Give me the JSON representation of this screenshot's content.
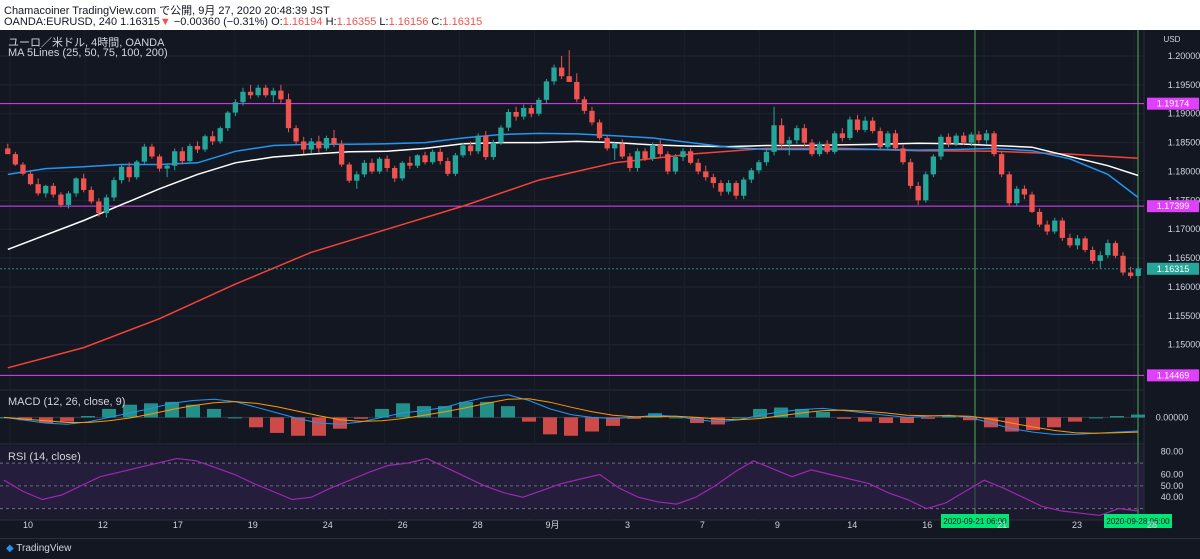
{
  "header": {
    "line1": "Chamacoiner TradingView.com で公開, 9月 27, 2020 20:48:39 JST",
    "symbol": "OANDA:EURUSD, 240",
    "last": "1.16315",
    "change": "−0.00360 (−0.31%)",
    "o_label": "O:",
    "o": "1.16194",
    "h_label": "H:",
    "h": "1.16355",
    "l_label": "L:",
    "l": "1.16156",
    "c_label": "C:",
    "c": "1.16315"
  },
  "legend": {
    "title": "ユーロ／米ドル, 4時間, OANDA",
    "ma": "MA 5Lines (25, 50, 75, 100, 200)",
    "macd": "MACD (12, 26, close, 9)",
    "rsi": "RSI (14, close)"
  },
  "footer": {
    "brand": "TradingView"
  },
  "colors": {
    "up": "#26a69a",
    "down": "#ef5350",
    "ma_blue": "#2196f3",
    "ma_red": "#f44336",
    "ma_white": "#ffffff",
    "level": "#e040fb",
    "vline": "#4caf50",
    "rsi": "#9c27b0"
  },
  "chart_data": {
    "type": "candlestick",
    "currency": "USD",
    "price_axis_ticks": [
      "1.20000",
      "1.19500",
      "1.19000",
      "1.18500",
      "1.18000",
      "1.17500",
      "1.17000",
      "1.16500",
      "1.16000",
      "1.15500",
      "1.15000"
    ],
    "price_range": [
      1.1425,
      1.2045
    ],
    "date_ticks": [
      "10",
      "12",
      "17",
      "19",
      "24",
      "26",
      "28",
      "9月",
      "3",
      "7",
      "9",
      "14",
      "16",
      "21",
      "23",
      "28"
    ],
    "levels": [
      "1.19174",
      "1.17399",
      "1.14469"
    ],
    "last_price": "1.16315",
    "vertical_markers": [
      "2020-09-21 06:00",
      "2020-09-28 06:00"
    ],
    "ma_blue": [
      [
        0,
        1.1795
      ],
      [
        5,
        1.1805
      ],
      [
        10,
        1.1808
      ],
      [
        15,
        1.1812
      ],
      [
        20,
        1.1812
      ],
      [
        25,
        1.1815
      ],
      [
        30,
        1.1835
      ],
      [
        35,
        1.1845
      ],
      [
        40,
        1.1847
      ],
      [
        45,
        1.1847
      ],
      [
        50,
        1.1848
      ],
      [
        55,
        1.185
      ],
      [
        60,
        1.1858
      ],
      [
        65,
        1.1864
      ],
      [
        70,
        1.1866
      ],
      [
        75,
        1.1865
      ],
      [
        80,
        1.1862
      ],
      [
        85,
        1.1858
      ],
      [
        90,
        1.185
      ],
      [
        95,
        1.1842
      ],
      [
        100,
        1.1838
      ],
      [
        105,
        1.1838
      ],
      [
        110,
        1.1838
      ],
      [
        115,
        1.1838
      ],
      [
        120,
        1.1837
      ],
      [
        125,
        1.1838
      ],
      [
        130,
        1.184
      ],
      [
        135,
        1.1836
      ],
      [
        140,
        1.1822
      ],
      [
        145,
        1.1795
      ],
      [
        149,
        1.1755
      ]
    ],
    "ma_white": [
      [
        0,
        1.1665
      ],
      [
        10,
        1.1715
      ],
      [
        20,
        1.177
      ],
      [
        25,
        1.1795
      ],
      [
        30,
        1.1815
      ],
      [
        35,
        1.1825
      ],
      [
        40,
        1.183
      ],
      [
        45,
        1.1834
      ],
      [
        50,
        1.1835
      ],
      [
        55,
        1.184
      ],
      [
        60,
        1.1848
      ],
      [
        65,
        1.185
      ],
      [
        70,
        1.185
      ],
      [
        75,
        1.1852
      ],
      [
        80,
        1.185
      ],
      [
        85,
        1.1846
      ],
      [
        90,
        1.1844
      ],
      [
        95,
        1.1843
      ],
      [
        100,
        1.1845
      ],
      [
        105,
        1.1845
      ],
      [
        110,
        1.1846
      ],
      [
        115,
        1.1847
      ],
      [
        120,
        1.1849
      ],
      [
        125,
        1.1848
      ],
      [
        130,
        1.1845
      ],
      [
        135,
        1.1842
      ],
      [
        140,
        1.1826
      ],
      [
        145,
        1.181
      ],
      [
        149,
        1.1793
      ]
    ],
    "ma_red": [
      [
        0,
        1.146
      ],
      [
        10,
        1.1495
      ],
      [
        20,
        1.1545
      ],
      [
        30,
        1.1605
      ],
      [
        40,
        1.166
      ],
      [
        50,
        1.17
      ],
      [
        60,
        1.174
      ],
      [
        70,
        1.1785
      ],
      [
        80,
        1.1815
      ],
      [
        90,
        1.183
      ],
      [
        100,
        1.184
      ],
      [
        110,
        1.184
      ],
      [
        120,
        1.1836
      ],
      [
        130,
        1.1835
      ],
      [
        140,
        1.183
      ],
      [
        149,
        1.1823
      ]
    ],
    "candles": [
      [
        1.184,
        1.1848,
        1.1832,
        1.183
      ],
      [
        1.183,
        1.1834,
        1.181,
        1.1812
      ],
      [
        1.1812,
        1.1816,
        1.1793,
        1.1796
      ],
      [
        1.1796,
        1.1802,
        1.1776,
        1.1778
      ],
      [
        1.1778,
        1.1788,
        1.1758,
        1.1762
      ],
      [
        1.1762,
        1.1777,
        1.1755,
        1.1775
      ],
      [
        1.1775,
        1.178,
        1.1755,
        1.176
      ],
      [
        1.176,
        1.1764,
        1.1738,
        1.1742
      ],
      [
        1.1742,
        1.1766,
        1.1736,
        1.1762
      ],
      [
        1.1762,
        1.179,
        1.1756,
        1.1788
      ],
      [
        1.1788,
        1.1796,
        1.1764,
        1.1768
      ],
      [
        1.1768,
        1.1774,
        1.1744,
        1.1748
      ],
      [
        1.1748,
        1.1754,
        1.1722,
        1.1728
      ],
      [
        1.1728,
        1.176,
        1.172,
        1.1755
      ],
      [
        1.1755,
        1.179,
        1.1749,
        1.1785
      ],
      [
        1.1785,
        1.1813,
        1.1779,
        1.1808
      ],
      [
        1.1808,
        1.1816,
        1.1782,
        1.179
      ],
      [
        1.179,
        1.182,
        1.1786,
        1.1817
      ],
      [
        1.1817,
        1.1848,
        1.1813,
        1.1843
      ],
      [
        1.1843,
        1.1848,
        1.1822,
        1.1826
      ],
      [
        1.1826,
        1.183,
        1.18,
        1.1805
      ],
      [
        1.1805,
        1.1813,
        1.179,
        1.181
      ],
      [
        1.181,
        1.184,
        1.1802,
        1.1835
      ],
      [
        1.1835,
        1.1842,
        1.1812,
        1.1818
      ],
      [
        1.1818,
        1.1848,
        1.1814,
        1.1844
      ],
      [
        1.1844,
        1.1852,
        1.1832,
        1.1838
      ],
      [
        1.1838,
        1.1864,
        1.1834,
        1.1861
      ],
      [
        1.1861,
        1.187,
        1.1846,
        1.1852
      ],
      [
        1.1852,
        1.1878,
        1.1848,
        1.1875
      ],
      [
        1.1875,
        1.1905,
        1.187,
        1.1902
      ],
      [
        1.1902,
        1.1925,
        1.1896,
        1.192
      ],
      [
        1.192,
        1.1945,
        1.1914,
        1.1938
      ],
      [
        1.1938,
        1.195,
        1.1926,
        1.1932
      ],
      [
        1.1932,
        1.195,
        1.1928,
        1.1945
      ],
      [
        1.1945,
        1.195,
        1.1928,
        1.1932
      ],
      [
        1.1932,
        1.1945,
        1.192,
        1.194
      ],
      [
        1.194,
        1.195,
        1.1918,
        1.1925
      ],
      [
        1.1925,
        1.1935,
        1.1868,
        1.1875
      ],
      [
        1.1875,
        1.188,
        1.1846,
        1.1852
      ],
      [
        1.1852,
        1.186,
        1.183,
        1.1838
      ],
      [
        1.1838,
        1.1858,
        1.1832,
        1.1852
      ],
      [
        1.1852,
        1.1862,
        1.1832,
        1.184
      ],
      [
        1.184,
        1.1862,
        1.1836,
        1.1858
      ],
      [
        1.1858,
        1.1872,
        1.1842,
        1.1848
      ],
      [
        1.1848,
        1.1854,
        1.1808,
        1.1812
      ],
      [
        1.1812,
        1.1816,
        1.178,
        1.1784
      ],
      [
        1.1784,
        1.18,
        1.177,
        1.1795
      ],
      [
        1.1795,
        1.182,
        1.179,
        1.1815
      ],
      [
        1.1815,
        1.1822,
        1.1796,
        1.18
      ],
      [
        1.18,
        1.1825,
        1.1796,
        1.1822
      ],
      [
        1.1822,
        1.1828,
        1.18,
        1.1806
      ],
      [
        1.1806,
        1.181,
        1.1782,
        1.1788
      ],
      [
        1.1788,
        1.1818,
        1.1784,
        1.1815
      ],
      [
        1.1815,
        1.1826,
        1.1804,
        1.181
      ],
      [
        1.181,
        1.183,
        1.1806,
        1.1828
      ],
      [
        1.1828,
        1.1834,
        1.1812,
        1.1816
      ],
      [
        1.1816,
        1.1838,
        1.1812,
        1.1834
      ],
      [
        1.1834,
        1.184,
        1.1812,
        1.1818
      ],
      [
        1.1818,
        1.1824,
        1.1792,
        1.1796
      ],
      [
        1.1796,
        1.1832,
        1.1792,
        1.1828
      ],
      [
        1.1828,
        1.185,
        1.1824,
        1.1845
      ],
      [
        1.1845,
        1.1852,
        1.1828,
        1.1835
      ],
      [
        1.1835,
        1.1866,
        1.183,
        1.1862
      ],
      [
        1.1862,
        1.187,
        1.182,
        1.1825
      ],
      [
        1.1825,
        1.1855,
        1.182,
        1.185
      ],
      [
        1.185,
        1.188,
        1.1846,
        1.1876
      ],
      [
        1.1876,
        1.1908,
        1.187,
        1.1903
      ],
      [
        1.1903,
        1.1912,
        1.1888,
        1.1895
      ],
      [
        1.1895,
        1.1916,
        1.189,
        1.191
      ],
      [
        1.191,
        1.1915,
        1.1894,
        1.19
      ],
      [
        1.19,
        1.1928,
        1.1896,
        1.1924
      ],
      [
        1.1924,
        1.196,
        1.1918,
        1.1956
      ],
      [
        1.1956,
        1.1985,
        1.195,
        1.198
      ],
      [
        1.198,
        1.2,
        1.196,
        1.1965
      ],
      [
        1.1965,
        1.201,
        1.1955,
        1.1955
      ],
      [
        1.1955,
        1.197,
        1.192,
        1.1925
      ],
      [
        1.1925,
        1.193,
        1.19,
        1.1905
      ],
      [
        1.1905,
        1.1912,
        1.188,
        1.1885
      ],
      [
        1.1885,
        1.189,
        1.1855,
        1.1858
      ],
      [
        1.1858,
        1.1862,
        1.1836,
        1.184
      ],
      [
        1.184,
        1.185,
        1.182,
        1.1848
      ],
      [
        1.1848,
        1.1856,
        1.1822,
        1.1826
      ],
      [
        1.1826,
        1.1832,
        1.18,
        1.1806
      ],
      [
        1.1806,
        1.184,
        1.18,
        1.1835
      ],
      [
        1.1835,
        1.184,
        1.1818,
        1.1822
      ],
      [
        1.1822,
        1.185,
        1.1818,
        1.1846
      ],
      [
        1.1846,
        1.1855,
        1.1825,
        1.183
      ],
      [
        1.183,
        1.1835,
        1.1795,
        1.18
      ],
      [
        1.18,
        1.183,
        1.1795,
        1.1825
      ],
      [
        1.1825,
        1.184,
        1.1818,
        1.1835
      ],
      [
        1.1835,
        1.184,
        1.1812,
        1.1815
      ],
      [
        1.1815,
        1.1822,
        1.1795,
        1.18
      ],
      [
        1.18,
        1.181,
        1.1784,
        1.179
      ],
      [
        1.179,
        1.1796,
        1.1772,
        1.178
      ],
      [
        1.178,
        1.1785,
        1.1758,
        1.1765
      ],
      [
        1.1765,
        1.1785,
        1.176,
        1.178
      ],
      [
        1.178,
        1.1784,
        1.1752,
        1.1758
      ],
      [
        1.1758,
        1.179,
        1.1752,
        1.1786
      ],
      [
        1.1786,
        1.1806,
        1.178,
        1.1802
      ],
      [
        1.1802,
        1.182,
        1.1796,
        1.1816
      ],
      [
        1.1816,
        1.1838,
        1.181,
        1.1834
      ],
      [
        1.1834,
        1.1912,
        1.1828,
        1.188
      ],
      [
        1.188,
        1.1892,
        1.184,
        1.1848
      ],
      [
        1.1848,
        1.186,
        1.1828,
        1.1854
      ],
      [
        1.1854,
        1.188,
        1.1848,
        1.1875
      ],
      [
        1.1875,
        1.1882,
        1.1844,
        1.185
      ],
      [
        1.185,
        1.1856,
        1.1826,
        1.183
      ],
      [
        1.183,
        1.1852,
        1.1826,
        1.1848
      ],
      [
        1.1848,
        1.1854,
        1.183,
        1.1834
      ],
      [
        1.1834,
        1.187,
        1.183,
        1.1866
      ],
      [
        1.1866,
        1.1875,
        1.1852,
        1.1858
      ],
      [
        1.1858,
        1.1895,
        1.1854,
        1.189
      ],
      [
        1.189,
        1.1898,
        1.1868,
        1.1872
      ],
      [
        1.1872,
        1.1895,
        1.1868,
        1.1888
      ],
      [
        1.1888,
        1.1894,
        1.1866,
        1.187
      ],
      [
        1.187,
        1.1876,
        1.1838,
        1.1842
      ],
      [
        1.1842,
        1.187,
        1.1838,
        1.1866
      ],
      [
        1.1866,
        1.1872,
        1.1836,
        1.184
      ],
      [
        1.184,
        1.1846,
        1.1812,
        1.1816
      ],
      [
        1.1816,
        1.1822,
        1.177,
        1.1775
      ],
      [
        1.1775,
        1.1782,
        1.1742,
        1.175
      ],
      [
        1.175,
        1.18,
        1.1746,
        1.1795
      ],
      [
        1.1795,
        1.183,
        1.179,
        1.1826
      ],
      [
        1.1826,
        1.1864,
        1.182,
        1.186
      ],
      [
        1.186,
        1.1866,
        1.1842,
        1.1848
      ],
      [
        1.1848,
        1.1866,
        1.1844,
        1.1862
      ],
      [
        1.1862,
        1.1868,
        1.1846,
        1.185
      ],
      [
        1.185,
        1.1868,
        1.1844,
        1.1864
      ],
      [
        1.1864,
        1.187,
        1.1848,
        1.1854
      ],
      [
        1.1854,
        1.1872,
        1.1848,
        1.1866
      ],
      [
        1.1866,
        1.187,
        1.1826,
        1.183
      ],
      [
        1.183,
        1.1834,
        1.179,
        1.1795
      ],
      [
        1.1795,
        1.18,
        1.174,
        1.1745
      ],
      [
        1.1745,
        1.1775,
        1.174,
        1.177
      ],
      [
        1.177,
        1.1776,
        1.1752,
        1.176
      ],
      [
        1.176,
        1.1765,
        1.1728,
        1.173
      ],
      [
        1.173,
        1.1736,
        1.1704,
        1.1708
      ],
      [
        1.1708,
        1.1715,
        1.169,
        1.1696
      ],
      [
        1.1696,
        1.172,
        1.1692,
        1.1715
      ],
      [
        1.1715,
        1.172,
        1.168,
        1.1685
      ],
      [
        1.1685,
        1.1692,
        1.1668,
        1.1672
      ],
      [
        1.1672,
        1.169,
        1.1665,
        1.1684
      ],
      [
        1.1684,
        1.1688,
        1.166,
        1.1664
      ],
      [
        1.1664,
        1.167,
        1.164,
        1.1645
      ],
      [
        1.1645,
        1.1662,
        1.1632,
        1.1655
      ],
      [
        1.1655,
        1.1682,
        1.165,
        1.1676
      ],
      [
        1.1676,
        1.168,
        1.165,
        1.1654
      ],
      [
        1.1654,
        1.166,
        1.162,
        1.1625
      ],
      [
        1.1625,
        1.1635,
        1.1615,
        1.1619
      ],
      [
        1.1619,
        1.1636,
        1.1616,
        1.1632
      ]
    ],
    "macd": {
      "axis_ticks": [
        "0.00000"
      ],
      "macd_line": [
        0.0,
        -0.0005,
        -0.001,
        -0.0012,
        -0.0008,
        0.0,
        0.0008,
        0.0016,
        0.0025,
        0.003,
        0.0032,
        0.0028,
        0.0018,
        0.0008,
        -0.0002,
        -0.001,
        -0.0012,
        -0.0008,
        0.0,
        0.0008,
        0.0012,
        0.0018,
        0.0028,
        0.0036,
        0.004,
        0.003,
        0.0015,
        0.0005,
        0.0,
        -0.0002,
        0.0,
        0.0004,
        0.0002,
        -0.0004,
        -0.0008,
        -0.0004,
        0.0004,
        0.001,
        0.0014,
        0.0016,
        0.0012,
        0.0008,
        0.0004,
        0.0,
        0.0002,
        0.0004,
        0.0,
        -0.001,
        -0.002,
        -0.0026,
        -0.003,
        -0.003,
        -0.0028,
        -0.0026,
        -0.0024
      ],
      "signal_line": [
        0.0,
        -0.0003,
        -0.0006,
        -0.0009,
        -0.0009,
        -0.0006,
        -0.0001,
        0.0006,
        0.0014,
        0.0021,
        0.0026,
        0.0028,
        0.0025,
        0.0019,
        0.0011,
        0.0003,
        -0.0004,
        -0.0007,
        -0.0006,
        -0.0002,
        0.0004,
        0.001,
        0.0017,
        0.0025,
        0.0032,
        0.0033,
        0.0027,
        0.0018,
        0.001,
        0.0004,
        0.0001,
        0.0001,
        0.0002,
        0.0,
        -0.0003,
        -0.0004,
        -0.0002,
        0.0003,
        0.0008,
        0.0012,
        0.0013,
        0.0011,
        0.0008,
        0.0004,
        0.0003,
        0.0003,
        0.0002,
        -0.0003,
        -0.001,
        -0.0017,
        -0.0023,
        -0.0027,
        -0.0028,
        -0.0027,
        -0.0026
      ]
    },
    "rsi": {
      "axis_ticks": [
        "80.00",
        "60.00",
        "50.00",
        "40.00"
      ],
      "band": [
        30,
        70
      ],
      "values": [
        55,
        45,
        38,
        42,
        50,
        58,
        62,
        66,
        70,
        74,
        72,
        66,
        60,
        52,
        45,
        38,
        40,
        48,
        55,
        62,
        68,
        70,
        74,
        66,
        58,
        50,
        44,
        40,
        46,
        52,
        56,
        60,
        48,
        40,
        36,
        34,
        40,
        50,
        62,
        72,
        65,
        58,
        64,
        60,
        56,
        52,
        44,
        38,
        30,
        35,
        45,
        55,
        48,
        40,
        32,
        28,
        26,
        24,
        30,
        28
      ]
    }
  }
}
